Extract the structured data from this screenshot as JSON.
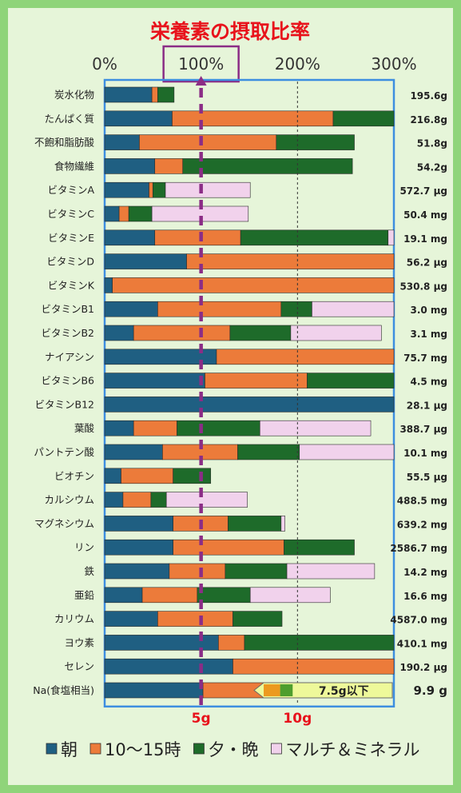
{
  "chart_data": {
    "type": "bar",
    "stacked": true,
    "orientation": "horizontal",
    "title": "栄養素の摂取比率",
    "xlim": [
      0,
      300
    ],
    "x_ticks": [
      "0%",
      "100%",
      "200%",
      "300%"
    ],
    "highlight_tick": "100%",
    "categories": [
      "炭水化物",
      "たんぱく質",
      "不飽和脂肪酸",
      "食物繊維",
      "ビタミンA",
      "ビタミンC",
      "ビタミンE",
      "ビタミンD",
      "ビタミンK",
      "ビタミンB1",
      "ビタミンB2",
      "ナイアシン",
      "ビタミンB6",
      "ビタミンB12",
      "葉酸",
      "パントテン酸",
      "ビオチン",
      "カルシウム",
      "マグネシウム",
      "リン",
      "鉄",
      "亜鉛",
      "カリウム",
      "ヨウ素",
      "セレン",
      "Na(食塩相当)"
    ],
    "amounts": [
      "195.6g",
      "216.8g",
      "51.8g",
      "54.2g",
      "572.7 μg",
      "50.4 mg",
      "19.1 mg",
      "56.2 μg",
      "530.8 μg",
      "3.0 mg",
      "3.1 mg",
      "75.7 mg",
      "4.5 mg",
      "28.1 μg",
      "388.7 μg",
      "10.1 mg",
      "55.5 μg",
      "488.5 mg",
      "639.2 mg",
      "2586.7 mg",
      "14.2 mg",
      "16.6 mg",
      "4587.0 mg",
      "410.1 mg",
      "190.2 μg",
      "9.9 g"
    ],
    "series": [
      {
        "name": "朝",
        "color": "#1f5f82",
        "values": [
          49,
          70,
          36,
          52,
          46,
          15,
          52,
          85,
          8,
          55,
          30,
          116,
          104,
          300,
          30,
          60,
          17,
          19,
          71,
          71,
          67,
          39,
          55,
          118,
          133,
          102
        ]
      },
      {
        "name": "10～15時",
        "color": "#ec7b3a",
        "values": [
          6,
          167,
          142,
          29,
          4,
          10,
          89,
          215,
          292,
          128,
          100,
          184,
          106,
          0,
          45,
          78,
          54,
          29,
          57,
          115,
          58,
          57,
          78,
          27,
          167,
          80
        ]
      },
      {
        "name": "夕・晩",
        "color": "#1e6b2a",
        "values": [
          17,
          63,
          81,
          176,
          13,
          24,
          153,
          0,
          0,
          32,
          63,
          0,
          90,
          0,
          86,
          64,
          39,
          16,
          55,
          73,
          64,
          55,
          51,
          155,
          0,
          13
        ]
      },
      {
        "name": "マルチ＆ミネラル",
        "color": "#f1d2ec",
        "values": [
          0,
          0,
          0,
          0,
          88,
          100,
          7,
          0,
          0,
          85,
          94,
          0,
          0,
          0,
          115,
          98,
          0,
          84,
          4,
          0,
          91,
          83,
          0,
          0,
          0,
          0
        ]
      }
    ],
    "na_bottom_ticks": [
      "5g",
      "10g"
    ],
    "na_target_label": "7.5g以下",
    "grid": "dashed vertical lines at 100%, 200%",
    "legend_position": "bottom"
  }
}
